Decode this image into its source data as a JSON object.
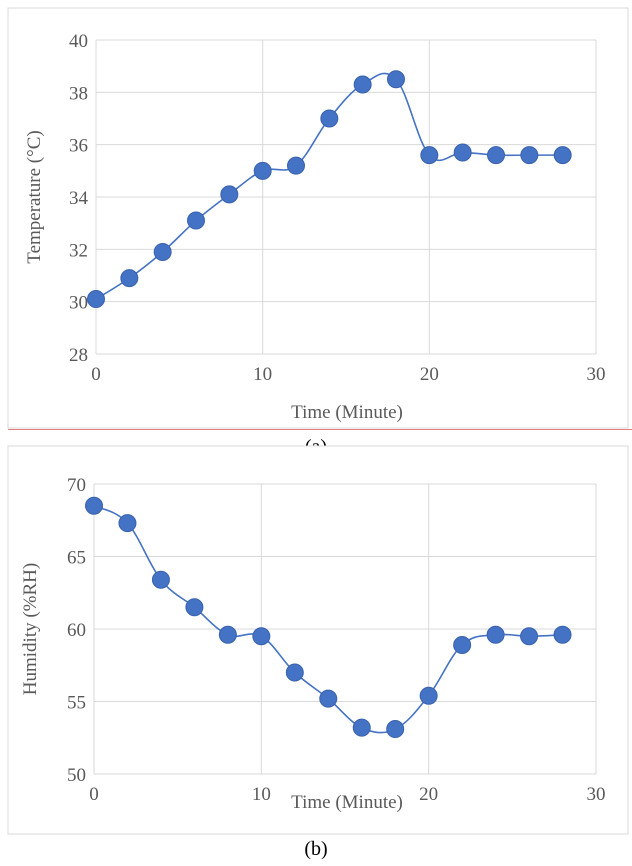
{
  "chart_data": [
    {
      "type": "line",
      "caption": "(a)",
      "title": "",
      "xlabel": "Time (Minute)",
      "ylabel": "Temperature (°C)",
      "xlim": [
        0,
        30
      ],
      "ylim": [
        28,
        40
      ],
      "x_ticks": [
        0,
        10,
        20,
        30
      ],
      "y_ticks": [
        28,
        30,
        32,
        34,
        36,
        38,
        40
      ],
      "grid": true,
      "smooth": true,
      "markers": true,
      "color": "#4472c4",
      "series": [
        {
          "x": [
            0,
            2,
            4,
            6,
            8,
            10,
            12,
            14,
            16,
            18,
            20,
            22,
            24,
            26,
            28
          ],
          "y": [
            30.1,
            30.9,
            31.9,
            33.1,
            34.1,
            35.0,
            35.2,
            37.0,
            38.3,
            38.5,
            35.6,
            35.7,
            35.6,
            35.6,
            35.6
          ]
        }
      ]
    },
    {
      "type": "line",
      "caption": "(b)",
      "title": "",
      "xlabel": "Time (Minute)",
      "ylabel": "Humidity (%RH)",
      "xlim": [
        0,
        30
      ],
      "ylim": [
        50,
        70
      ],
      "x_ticks": [
        0,
        10,
        20,
        30
      ],
      "y_ticks": [
        50,
        55,
        60,
        65,
        70
      ],
      "grid": true,
      "smooth": true,
      "markers": true,
      "color": "#4472c4",
      "series": [
        {
          "x": [
            0,
            2,
            4,
            6,
            8,
            10,
            12,
            14,
            16,
            18,
            20,
            22,
            24,
            26,
            28
          ],
          "y": [
            68.5,
            67.3,
            63.4,
            61.5,
            59.6,
            59.5,
            57.0,
            55.2,
            53.2,
            53.1,
            55.4,
            58.9,
            59.6,
            59.5,
            59.6
          ]
        }
      ]
    }
  ]
}
